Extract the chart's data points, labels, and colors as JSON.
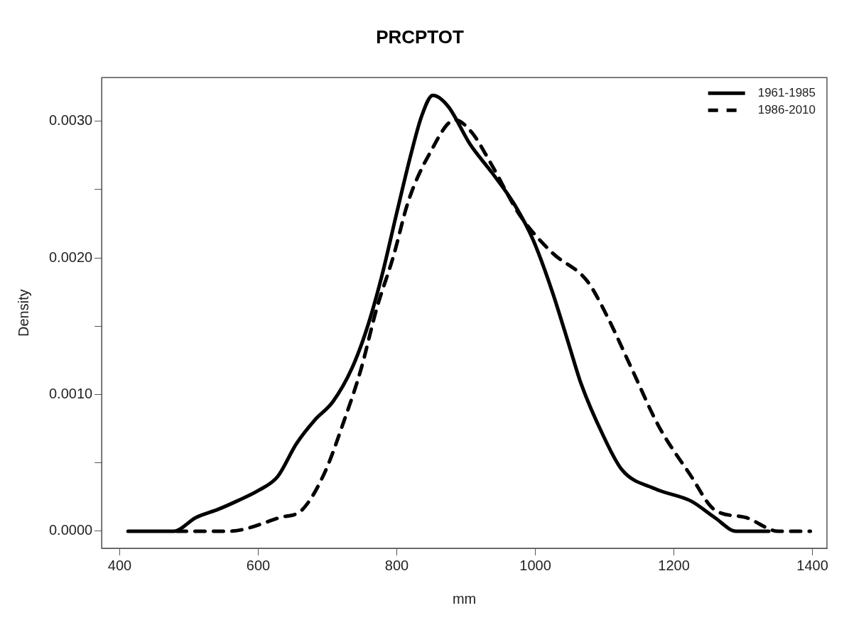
{
  "chart_data": {
    "type": "line",
    "title": "PRCPTOT",
    "xlabel": "mm",
    "ylabel": "Density",
    "xlim": [
      374,
      1421
    ],
    "xticks": [
      400,
      600,
      800,
      1000,
      1200,
      1400
    ],
    "ylim": [
      -0.000125,
      0.00332
    ],
    "yticks": [
      {
        "value": 0,
        "label": "0.0000"
      },
      {
        "value": 0.0005,
        "label": null
      },
      {
        "value": 0.001,
        "label": "0.0010"
      },
      {
        "value": 0.0015,
        "label": null
      },
      {
        "value": 0.002,
        "label": "0.0020"
      },
      {
        "value": 0.0025,
        "label": null
      },
      {
        "value": 0.003,
        "label": "0.0030"
      }
    ],
    "grid": false,
    "legend": "top right",
    "marker": "none",
    "series": [
      {
        "name": "1961-1985",
        "color": "#000000",
        "line_style": "solid",
        "x": [
          412,
          446,
          478,
          510,
          542,
          569,
          601,
          628,
          655,
          681,
          708,
          735,
          756,
          778,
          799,
          820,
          836,
          852,
          874,
          906,
          938,
          970,
          997,
          1024,
          1050,
          1066,
          1098,
          1125,
          1173,
          1225,
          1259,
          1290,
          1337
        ],
        "values": [
          0,
          0,
          0,
          0.0001,
          0.00016,
          0.00022,
          0.0003,
          0.0004,
          0.00064,
          0.00081,
          0.00095,
          0.00119,
          0.00147,
          0.00186,
          0.00231,
          0.00275,
          0.00304,
          0.00319,
          0.00311,
          0.00283,
          0.00262,
          0.00239,
          0.00213,
          0.00176,
          0.00134,
          0.00108,
          0.0007,
          0.00045,
          0.00031,
          0.00022,
          0.0001,
          0,
          0
        ]
      },
      {
        "name": "1986-2010",
        "color": "#000000",
        "line_style": "dashed",
        "x": [
          482,
          557,
          631,
          664,
          696,
          724,
          748,
          771,
          795,
          817,
          847,
          884,
          908,
          936,
          978,
          1024,
          1075,
          1103,
          1140,
          1178,
          1224,
          1258,
          1304,
          1351,
          1397
        ],
        "values": [
          0,
          0,
          0.0001,
          0.00016,
          0.00043,
          0.00081,
          0.00118,
          0.00163,
          0.00201,
          0.00242,
          0.00276,
          0.00301,
          0.00292,
          0.00269,
          0.00231,
          0.00204,
          0.00183,
          0.00158,
          0.00118,
          0.00077,
          0.00041,
          0.00016,
          0.0001,
          0,
          0
        ]
      }
    ]
  }
}
